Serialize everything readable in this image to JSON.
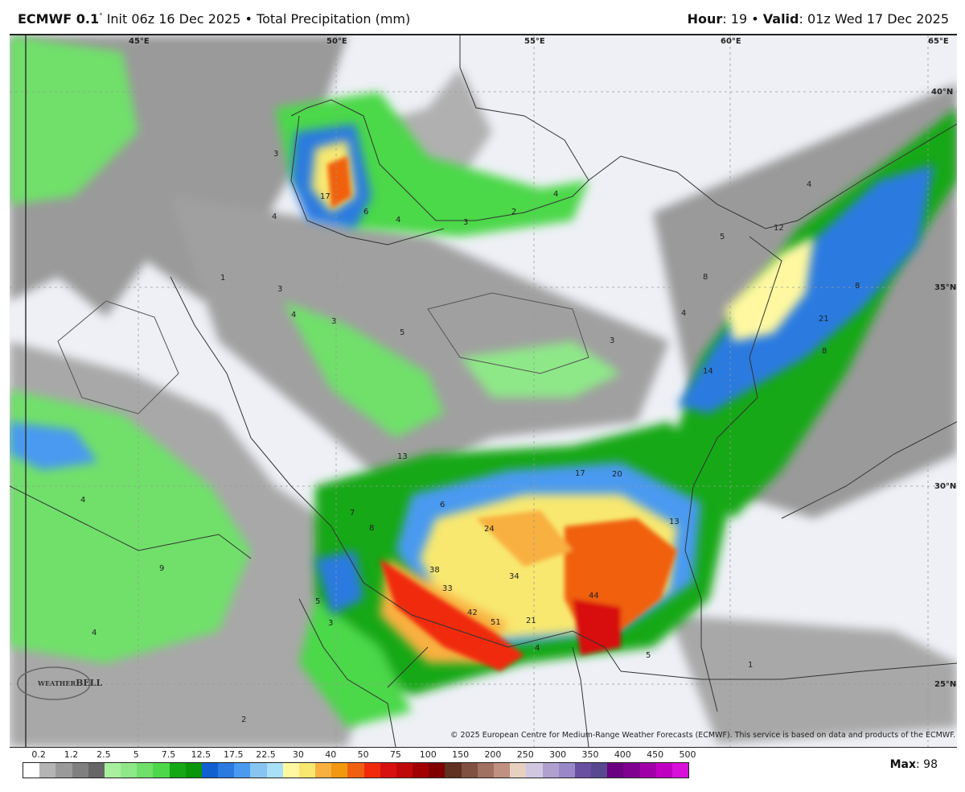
{
  "header": {
    "model": "ECMWF 0.1",
    "degree": "°",
    "init": "Init 06z 16 Dec 2025",
    "separator": "•",
    "product": "Total Precipitation (mm)",
    "hour_label": "Hour",
    "hour_value": ": 19",
    "valid_label": "Valid",
    "valid_value": ": 01z Wed 17 Dec 2025"
  },
  "map": {
    "longitude_labels": [
      "45°E",
      "50°E",
      "55°E",
      "60°E",
      "65°E"
    ],
    "latitude_labels": [
      "40°N",
      "35°N",
      "30°N",
      "25°N"
    ],
    "contour_values": [
      "17",
      "6",
      "4",
      "3",
      "2",
      "4",
      "5",
      "12",
      "4",
      "8",
      "4",
      "21",
      "8",
      "8",
      "14",
      "3",
      "13",
      "17",
      "20",
      "6",
      "24",
      "13",
      "7",
      "8",
      "38",
      "33",
      "34",
      "42",
      "51",
      "21",
      "44",
      "4",
      "5",
      "5",
      "3",
      "4",
      "4",
      "2",
      "1",
      "4",
      "3",
      "3",
      "1",
      "4",
      "3",
      "5",
      "9"
    ],
    "logo_text": "WeatherBELL",
    "colors": {
      "land": "#eef0f6",
      "border": "#333333",
      "grid": "#999999"
    }
  },
  "copyright": "© 2025 European Centre for Medium-Range Weather Forecasts (ECMWF). This service is based on data and products of the ECMWF.",
  "colorbar": {
    "unit": "mm",
    "ticks": [
      "0.2",
      "1.2",
      "2.5",
      "5",
      "7.5",
      "12.5",
      "17.5",
      "22.5",
      "30",
      "40",
      "50",
      "75",
      "100",
      "150",
      "200",
      "250",
      "300",
      "350",
      "400",
      "450",
      "500"
    ],
    "colors": [
      "#ffffff",
      "#b4b4b4",
      "#9a9a9a",
      "#808080",
      "#666666",
      "#a8f0a0",
      "#8ee888",
      "#6fe06a",
      "#4cd84a",
      "#14a814",
      "#0a960a",
      "#1060d0",
      "#2a7ae0",
      "#4a9af0",
      "#88c4f0",
      "#a8e0f8",
      "#fff8a0",
      "#f8e870",
      "#f8b040",
      "#f09810",
      "#f06010",
      "#f02a0a",
      "#d81010",
      "#c00808",
      "#a00000",
      "#800000",
      "#603020",
      "#805040",
      "#a07060",
      "#c09080",
      "#e8d0c0",
      "#d0c8e0",
      "#b0a0d0",
      "#9888c8",
      "#6a50a0",
      "#584890",
      "#6a0080",
      "#800090",
      "#a000a8",
      "#c000c0",
      "#d810d8"
    ]
  },
  "max": {
    "label": "Max",
    "value": ": 98"
  }
}
